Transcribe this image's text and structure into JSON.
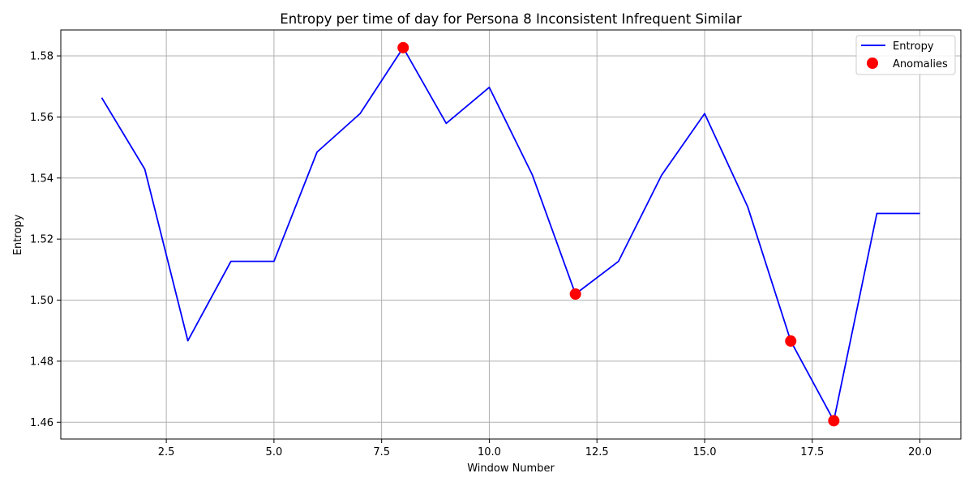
{
  "chart_data": {
    "type": "line",
    "title": "Entropy per time of day for Persona 8 Inconsistent Infrequent Similar",
    "xlabel": "Window Number",
    "ylabel": "Entropy",
    "xlim": [
      0.05,
      20.95
    ],
    "ylim": [
      1.4545,
      1.5885
    ],
    "xticks": [
      2.5,
      5.0,
      7.5,
      10.0,
      12.5,
      15.0,
      17.5,
      20.0
    ],
    "xtick_labels": [
      "2.5",
      "5.0",
      "7.5",
      "10.0",
      "12.5",
      "15.0",
      "17.5",
      "20.0"
    ],
    "yticks": [
      1.46,
      1.48,
      1.5,
      1.52,
      1.54,
      1.56,
      1.58
    ],
    "ytick_labels": [
      "1.46",
      "1.48",
      "1.50",
      "1.52",
      "1.54",
      "1.56",
      "1.58"
    ],
    "grid": true,
    "legend_position": "top-right",
    "series": [
      {
        "name": "Entropy",
        "kind": "line",
        "color": "#0000ff",
        "x": [
          1,
          2,
          3,
          4,
          5,
          6,
          7,
          8,
          9,
          10,
          11,
          12,
          13,
          14,
          15,
          16,
          17,
          18,
          19,
          20
        ],
        "y": [
          1.5663,
          1.5429,
          1.4867,
          1.5127,
          1.5127,
          1.5485,
          1.5611,
          1.5827,
          1.5579,
          1.5697,
          1.541,
          1.502,
          1.5127,
          1.5409,
          1.5611,
          1.5306,
          1.4866,
          1.4605,
          1.5284,
          1.5284
        ]
      },
      {
        "name": "Anomalies",
        "kind": "scatter",
        "color": "#ff0000",
        "x": [
          8,
          12,
          17,
          18
        ],
        "y": [
          1.5827,
          1.502,
          1.4866,
          1.4605
        ]
      }
    ]
  }
}
